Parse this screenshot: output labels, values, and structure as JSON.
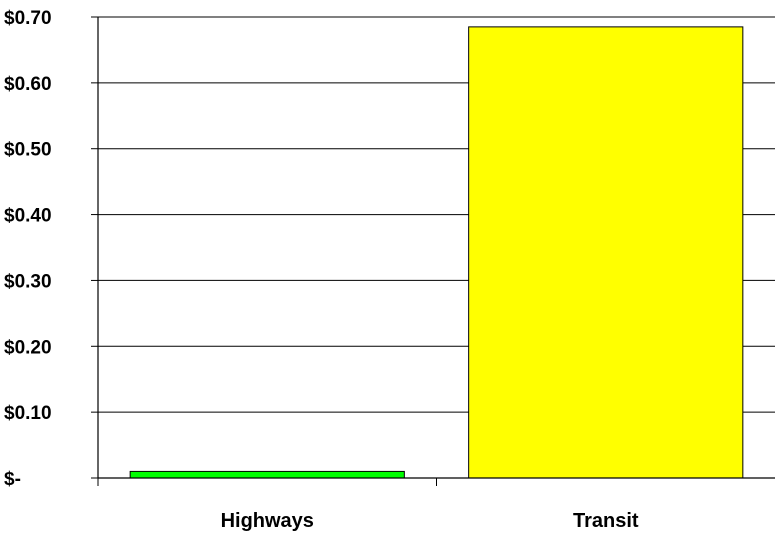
{
  "chart_data": {
    "type": "bar",
    "categories": [
      "Highways",
      "Transit"
    ],
    "values": [
      0.01,
      0.685
    ],
    "colors": [
      "#00ff00",
      "#ffff00"
    ],
    "ylim": [
      0,
      0.7
    ],
    "yticks": [
      0,
      0.1,
      0.2,
      0.3,
      0.4,
      0.5,
      0.6,
      0.7
    ],
    "ytick_labels": [
      "$-",
      "$0.10",
      "$0.20",
      "$0.30",
      "$0.40",
      "$0.50",
      "$0.60",
      "$0.70"
    ],
    "grid": true,
    "legend": "none",
    "title": "",
    "xlabel": "",
    "ylabel": ""
  }
}
